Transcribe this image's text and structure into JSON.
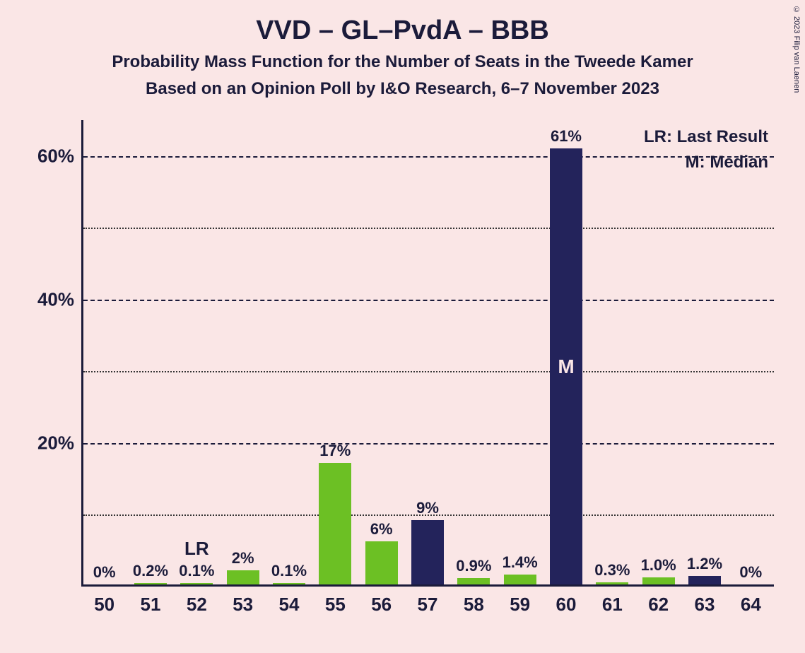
{
  "title": "VVD – GL–PvdA – BBB",
  "subtitle1": "Probability Mass Function for the Number of Seats in the Tweede Kamer",
  "subtitle2": "Based on an Opinion Poll by I&O Research, 6–7 November 2023",
  "copyright": "© 2023 Filip van Laenen",
  "legend": {
    "lr": "LR: Last Result",
    "m": "M: Median"
  },
  "lr_marker": "LR",
  "m_marker": "M",
  "chart": {
    "type": "bar",
    "background_color": "#fae6e6",
    "text_color": "#1b1b3a",
    "grid_color_major": "#1b1b3a",
    "grid_color_minor": "#333333",
    "axis_fontsize": 26,
    "title_fontsize": 38,
    "subtitle_fontsize": 24,
    "bar_width": 0.7,
    "colors": {
      "below_median": "#6cc024",
      "at_or_above_median": "#23235b"
    },
    "ylim": [
      0,
      65
    ],
    "y_major_ticks": [
      20,
      40,
      60
    ],
    "y_minor_ticks": [
      10,
      30,
      50
    ],
    "y_tick_labels": [
      "20%",
      "40%",
      "60%"
    ],
    "categories": [
      50,
      51,
      52,
      53,
      54,
      55,
      56,
      57,
      58,
      59,
      60,
      61,
      62,
      63,
      64
    ],
    "values": [
      0,
      0.2,
      0.1,
      2,
      0.1,
      17,
      6,
      9,
      0.9,
      1.4,
      61,
      0.3,
      1.0,
      1.2,
      0
    ],
    "value_labels": [
      "0%",
      "0.2%",
      "0.1%",
      "2%",
      "0.1%",
      "17%",
      "6%",
      "9%",
      "0.9%",
      "1.4%",
      "61%",
      "0.3%",
      "1.0%",
      "1.2%",
      "0%"
    ],
    "lr_index": 2,
    "median_index": 10
  }
}
